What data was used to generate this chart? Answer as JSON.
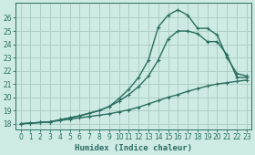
{
  "title": "",
  "xlabel": "Humidex (Indice chaleur)",
  "ylabel": "",
  "bg_color": "#ceeae4",
  "grid_color": "#aecec8",
  "line_color": "#2a6e62",
  "xlim": [
    -0.5,
    23.5
  ],
  "ylim": [
    17.6,
    27.1
  ],
  "xticks": [
    0,
    1,
    2,
    3,
    4,
    5,
    6,
    7,
    8,
    9,
    10,
    11,
    12,
    13,
    14,
    15,
    16,
    17,
    18,
    19,
    20,
    21,
    22,
    23
  ],
  "yticks": [
    18,
    19,
    20,
    21,
    22,
    23,
    24,
    25,
    26
  ],
  "line1_x": [
    0,
    1,
    2,
    3,
    4,
    5,
    6,
    7,
    8,
    9,
    10,
    11,
    12,
    13,
    14,
    15,
    16,
    17,
    18,
    19,
    20,
    21,
    22,
    23
  ],
  "line1_y": [
    18.0,
    18.05,
    18.1,
    18.15,
    18.25,
    18.35,
    18.45,
    18.55,
    18.65,
    18.75,
    18.9,
    19.05,
    19.25,
    19.5,
    19.75,
    20.0,
    20.2,
    20.45,
    20.65,
    20.85,
    21.0,
    21.1,
    21.2,
    21.3
  ],
  "line2_x": [
    0,
    1,
    2,
    3,
    4,
    5,
    6,
    7,
    8,
    9,
    10,
    11,
    12,
    13,
    14,
    15,
    16,
    17,
    18,
    19,
    20,
    21,
    22,
    23
  ],
  "line2_y": [
    18.0,
    18.05,
    18.1,
    18.15,
    18.3,
    18.45,
    18.6,
    18.8,
    19.0,
    19.3,
    19.7,
    20.2,
    20.8,
    21.6,
    22.8,
    24.4,
    25.0,
    25.0,
    24.8,
    24.2,
    24.2,
    23.2,
    21.5,
    21.5
  ],
  "line3_x": [
    0,
    1,
    2,
    3,
    4,
    5,
    6,
    7,
    8,
    9,
    10,
    11,
    12,
    13,
    14,
    15,
    16,
    17,
    18,
    19,
    20,
    21,
    22,
    23
  ],
  "line3_y": [
    18.0,
    18.05,
    18.1,
    18.15,
    18.3,
    18.45,
    18.6,
    18.8,
    19.0,
    19.3,
    19.9,
    20.6,
    21.5,
    22.8,
    25.3,
    26.2,
    26.6,
    26.2,
    25.2,
    25.2,
    24.7,
    23.0,
    21.8,
    21.6
  ],
  "marker_size": 3.5,
  "line_width": 1.0
}
